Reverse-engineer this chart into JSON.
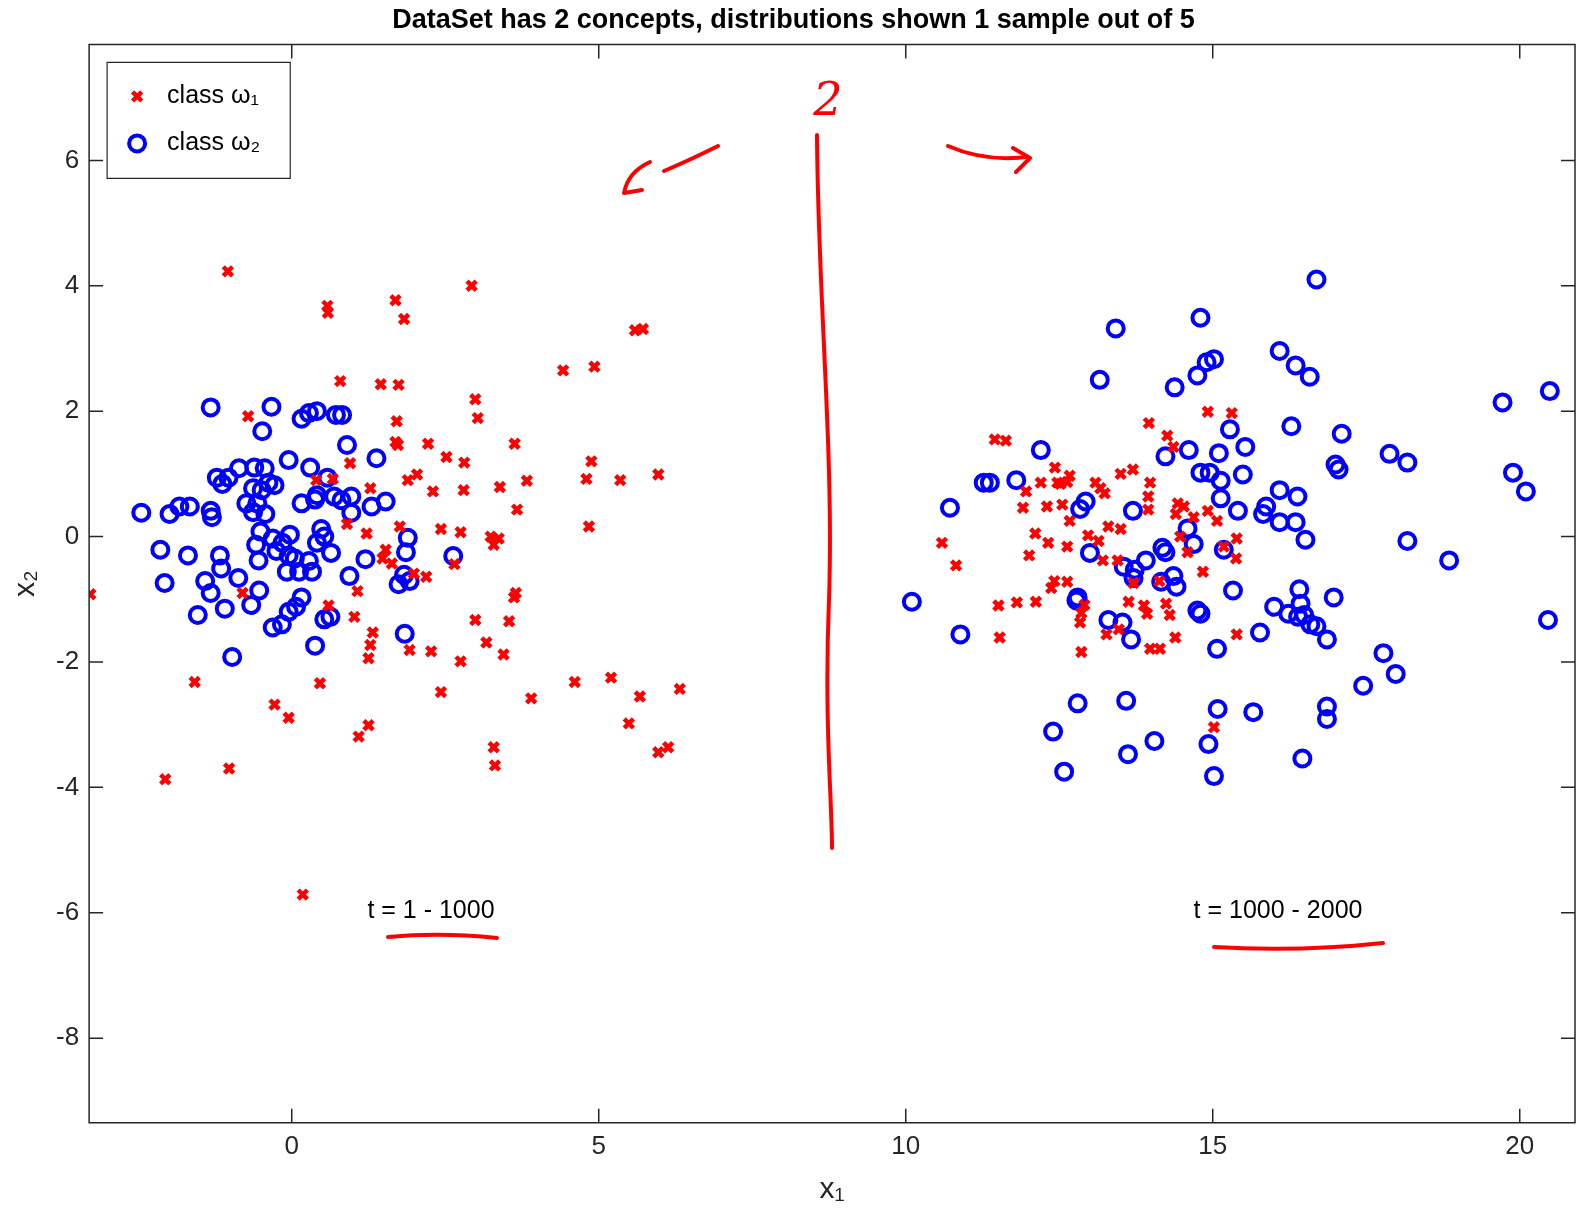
{
  "chart_data": {
    "type": "scatter",
    "title": "DataSet has 2 concepts, distributions shown 1 sample out of 5",
    "xlabel": "x₁",
    "ylabel": "x₂",
    "xlim": [
      -3.3,
      20.9
    ],
    "ylim": [
      -9.35,
      7.85
    ],
    "xticks": [
      0,
      5,
      10,
      15,
      20
    ],
    "yticks": [
      -8,
      -6,
      -4,
      -2,
      0,
      2,
      4,
      6
    ],
    "grid": false,
    "legend": "top left",
    "annotations": [
      "2",
      "t = 1 - 1000",
      "t = 1000 - 2000"
    ],
    "series": [
      {
        "name": "class ω₁",
        "color": "#ff0000",
        "marker": "cross",
        "x": [
          -3.28,
          -1.04,
          0.58,
          0.59,
          1.69,
          1.83,
          2.93,
          5.59,
          5.72,
          4.42,
          4.93,
          0.79,
          1.45,
          1.74,
          2.99,
          3.03,
          -0.71,
          1.71,
          1.69,
          1.73,
          2.22,
          3.63,
          2.52,
          2.81,
          0.95,
          2.04,
          1.89,
          4.88,
          4.8,
          5.35,
          5.97,
          3.83,
          3.39,
          2.3,
          2.8,
          4.84,
          1.28,
          0.67,
          1.76,
          0.9,
          2.43,
          2.75,
          3.24,
          3.29,
          3.37,
          1.22,
          1.53,
          1.48,
          1.63,
          3.67,
          2.65,
          2.19,
          3.65,
          3.62,
          1.07,
          1.99,
          1.02,
          2.99,
          3.54,
          1.32,
          1.28,
          1.25,
          1.92,
          2.27,
          3.17,
          3.45,
          2.75,
          0.46,
          -1.58,
          4.61,
          5.2,
          6.32,
          2.43,
          3.9,
          5.67,
          -0.28,
          -0.05,
          5.49,
          1.25,
          1.09,
          3.29,
          3.31,
          5.97,
          6.13,
          -2.06,
          -1.02,
          0.18,
          -0.8,
          0.6,
          0.4,
          14.92,
          15.31,
          13.96,
          11.45,
          11.63,
          14.26,
          14.36,
          12.43,
          12.67,
          12.47,
          12.2,
          12.52,
          12.63,
          13.09,
          13.17,
          13.24,
          13.5,
          13.7,
          13.98,
          13.95,
          11.96,
          11.91,
          12.3,
          12.55,
          14.43,
          14.53,
          14.4,
          14.69,
          14.92,
          15.07,
          13.95,
          12.11,
          12.67,
          12.32,
          12.63,
          12.97,
          13.14,
          13.3,
          13.5,
          13.45,
          13.21,
          14.47,
          14.59,
          15.39,
          15.18,
          15.38,
          10.59,
          10.82,
          12.01,
          12.42,
          12.37,
          12.63,
          13.71,
          14.13,
          14.84,
          11.51,
          11.81,
          12.12,
          12.91,
          12.84,
          12.86,
          13.63,
          13.88,
          13.93,
          14.24,
          14.3,
          13.27,
          13.47,
          13.98,
          14.14,
          14.39,
          15.39,
          11.53,
          12.86,
          15.02
        ],
        "values": [
          -0.92,
          4.23,
          3.68,
          3.57,
          3.77,
          3.47,
          4.0,
          3.29,
          3.31,
          2.65,
          2.71,
          2.48,
          2.43,
          2.42,
          2.19,
          1.89,
          1.92,
          1.84,
          1.51,
          1.46,
          1.48,
          1.48,
          1.27,
          1.18,
          1.17,
          0.99,
          0.9,
          1.2,
          0.92,
          0.9,
          0.99,
          0.89,
          0.79,
          0.72,
          0.74,
          0.16,
          0.77,
          0.92,
          0.16,
          0.2,
          0.12,
          0.07,
          0,
          -0.13,
          -0.03,
          0.05,
          -0.21,
          -0.35,
          -0.43,
          0.43,
          -0.44,
          -0.64,
          -0.9,
          -0.97,
          -0.87,
          -0.59,
          -1.28,
          -1.33,
          -1.35,
          -1.53,
          -1.73,
          -1.94,
          -1.81,
          -1.83,
          -1.69,
          -1.88,
          -1.99,
          -2.34,
          -2.32,
          -2.32,
          -2.25,
          -2.43,
          -2.48,
          -2.58,
          -2.55,
          -2.68,
          -2.89,
          -2.98,
          -3.01,
          -3.19,
          -3.36,
          -3.65,
          -3.44,
          -3.36,
          -3.87,
          -3.7,
          -5.71,
          -0.9,
          -1.1,
          0.9,
          1.99,
          1.97,
          1.81,
          1.55,
          1.53,
          1.61,
          1.43,
          1.1,
          0.97,
          0.86,
          0.86,
          0.84,
          0.87,
          0.86,
          0.77,
          0.69,
          1.0,
          1.07,
          0.86,
          0.64,
          0.72,
          0.46,
          0.48,
          0.51,
          0.53,
          0.48,
          0.36,
          0.31,
          0.41,
          0.25,
          0.43,
          0.05,
          0.25,
          -0.1,
          -0.16,
          0.02,
          -0.07,
          0.16,
          0.12,
          -0.38,
          -0.38,
          0,
          -0.25,
          -0.03,
          -0.16,
          -0.35,
          -0.1,
          -0.46,
          -0.3,
          -0.71,
          -0.82,
          -0.72,
          -0.74,
          -0.71,
          -0.56,
          -1.1,
          -1.05,
          -1.04,
          -1.09,
          -1.37,
          -1.22,
          -1.04,
          -1.1,
          -1.23,
          -1.07,
          -1.25,
          -1.56,
          -1.48,
          -1.79,
          -1.79,
          -1.61,
          -1.56,
          -1.61,
          -1.84,
          -3.04
        ]
      },
      {
        "name": "class ω₂",
        "color": "#0000ff",
        "marker": "circle",
        "x": [
          -1.32,
          -0.33,
          -0.48,
          0.16,
          0.28,
          0.41,
          0.72,
          0.82,
          0.9,
          1.38,
          -0.05,
          0.3,
          -0.86,
          -0.61,
          -0.44,
          -1.22,
          -1.13,
          -1.03,
          0.58,
          -0.38,
          -0.28,
          -0.63,
          -0.49,
          -0.74,
          -0.56,
          -0.63,
          -0.43,
          -1.3,
          -1.32,
          -1.83,
          -1.66,
          -1.99,
          -2.45,
          0.38,
          0.41,
          0.16,
          0.69,
          0.81,
          0.97,
          0.97,
          1.3,
          1.53,
          -2.14,
          -1.17,
          -1.15,
          -1.69,
          -0.51,
          -0.58,
          -0.54,
          -0.31,
          -0.25,
          -0.15,
          -0.03,
          -0.05,
          0.05,
          -0.08,
          0.12,
          0.28,
          0.41,
          0.48,
          0.53,
          0.64,
          0.33,
          1.2,
          0.94,
          1.89,
          1.86,
          1.83,
          1.92,
          1.74,
          2.63,
          -2.07,
          -1.41,
          -1.32,
          -1.53,
          -1.09,
          -0.66,
          -0.87,
          -0.53,
          -0.31,
          -0.16,
          -0.05,
          0.07,
          0.16,
          0.53,
          0.63,
          0.38,
          -0.97,
          1.84,
          16.69,
          14.8,
          13.42,
          16.09,
          16.35,
          14.9,
          15.02,
          14.75,
          16.58,
          13.16,
          14.38,
          19.72,
          20.49,
          16.28,
          15.28,
          17.1,
          12.2,
          14.61,
          15.53,
          17.88,
          18.17,
          15.1,
          14.23,
          17.0,
          17.05,
          14.8,
          14.95,
          15.49,
          15.13,
          11.27,
          11.37,
          11.8,
          19.89,
          20.1,
          16.09,
          12.93,
          12.84,
          15.13,
          16.38,
          10.72,
          13.7,
          15.41,
          15.87,
          15.82,
          14.59,
          16.09,
          16.35,
          18.17,
          16.51,
          13.0,
          14.18,
          14.23,
          14.69,
          15.18,
          13.55,
          13.73,
          13.91,
          13.71,
          14.36,
          14.16,
          14.41,
          18.85,
          15.33,
          10.1,
          12.8,
          12.78,
          16.41,
          16.43,
          16.97,
          16.0,
          16.23,
          16.39,
          16.59,
          16.49,
          14.75,
          14.8,
          13.3,
          13.53,
          13.67,
          10.89,
          15.77,
          16.69,
          16.86,
          15.07,
          17.78,
          17.98,
          17.45,
          12.8,
          13.59,
          15.08,
          15.66,
          16.86,
          16.86,
          12.4,
          14.05,
          14.93,
          13.62,
          16.46,
          12.58,
          15.02,
          20.46
        ],
        "values": [
          2.06,
          2.07,
          1.68,
          1.88,
          1.97,
          2.0,
          1.94,
          1.94,
          1.46,
          1.25,
          1.22,
          1.1,
          1.09,
          1.1,
          1.09,
          0.94,
          0.84,
          0.94,
          0.94,
          0.86,
          0.82,
          0.77,
          0.74,
          0.53,
          0.53,
          0.39,
          0.36,
          0.31,
          0.41,
          0.48,
          0.48,
          0.36,
          0.38,
          0.59,
          0.66,
          0.53,
          0.64,
          0.58,
          0.64,
          0.38,
          0.48,
          0.56,
          -0.21,
          -0.3,
          -0.51,
          -0.3,
          0.08,
          -0.13,
          -0.38,
          -0.03,
          -0.23,
          -0.1,
          0.03,
          -0.3,
          -0.35,
          -0.56,
          -0.56,
          -0.39,
          -0.1,
          0.12,
          0,
          -0.26,
          -0.56,
          -0.36,
          -0.63,
          -0.02,
          -0.25,
          -0.61,
          -0.71,
          -0.76,
          -0.31,
          -0.74,
          -0.71,
          -0.9,
          -1.25,
          -1.15,
          -1.09,
          -0.66,
          -0.86,
          -1.45,
          -1.4,
          -1.2,
          -1.12,
          -0.97,
          -1.32,
          -1.28,
          -1.74,
          -1.92,
          -1.55,
          4.1,
          3.49,
          3.32,
          2.96,
          2.73,
          2.78,
          2.83,
          2.57,
          2.55,
          2.5,
          2.38,
          2.14,
          2.32,
          1.76,
          1.71,
          1.64,
          1.38,
          1.38,
          1.43,
          1.32,
          1.18,
          1.33,
          1.28,
          1.15,
          1.07,
          1.02,
          1.02,
          0.99,
          0.89,
          0.86,
          0.86,
          0.9,
          1.02,
          0.72,
          0.74,
          0.56,
          0.44,
          0.61,
          0.64,
          0.46,
          0.41,
          0.41,
          0.48,
          0.36,
          0.13,
          0.23,
          0.23,
          -0.07,
          -0.05,
          -0.26,
          -0.18,
          -0.25,
          -0.12,
          -0.21,
          -0.48,
          -0.53,
          -0.38,
          -0.66,
          -0.63,
          -0.72,
          -0.8,
          -0.38,
          -0.86,
          -1.04,
          -0.97,
          -1.02,
          -0.84,
          -1.07,
          -0.97,
          -1.12,
          -1.23,
          -1.28,
          -1.4,
          -1.25,
          -1.18,
          -1.23,
          -1.33,
          -1.37,
          -1.64,
          -1.56,
          -1.53,
          -1.43,
          -1.64,
          -1.79,
          -1.86,
          -2.19,
          -2.38,
          -2.66,
          -2.62,
          -2.75,
          -2.8,
          -2.71,
          -2.91,
          -3.11,
          -3.26,
          -3.31,
          -3.47,
          -3.54,
          -3.75,
          -3.82,
          -1.33
        ]
      }
    ]
  }
}
